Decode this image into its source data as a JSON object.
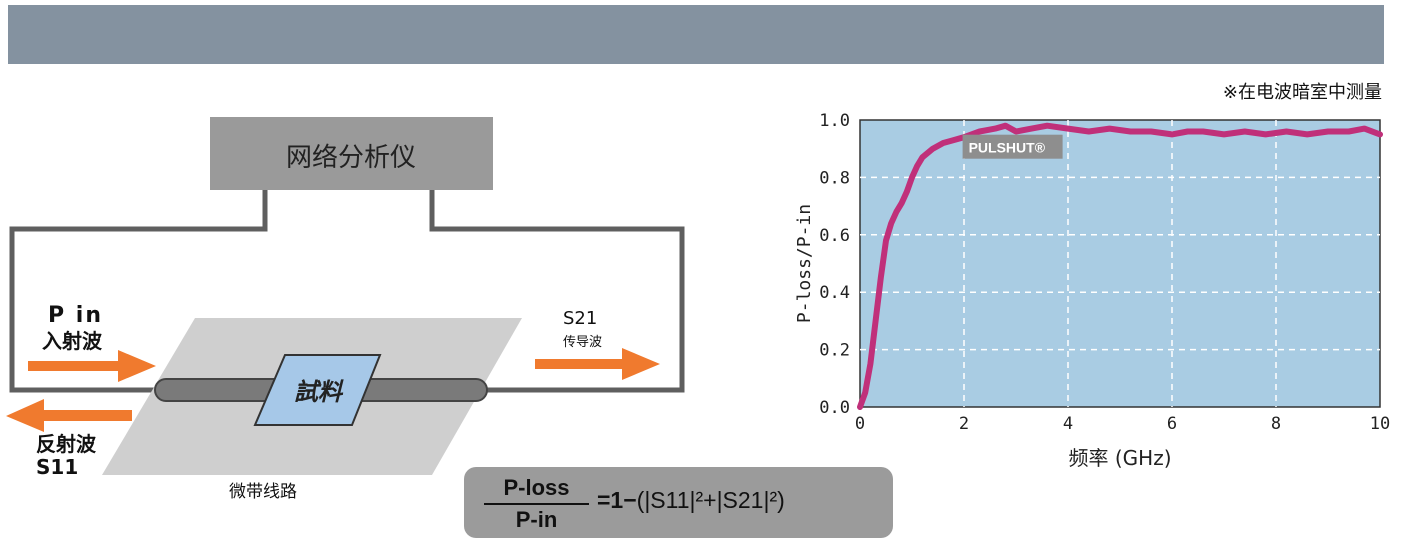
{
  "note": "※在电波暗室中测量",
  "diagram": {
    "analyzer_label": "网络分析仪",
    "pin_label": "P in",
    "incident_label": "入射波",
    "reflect_label": "反射波",
    "s11_label": "S11",
    "s21_label": "S21",
    "transmit_label": "传导波",
    "sample_label": "試料",
    "microstrip_label": "微带线路",
    "colors": {
      "arrow": "#f07a2e",
      "board": "#cfcfcf",
      "sample": "#a6c8e8",
      "box": "#9a9a9a",
      "line": "#5f5f5f"
    }
  },
  "formula": {
    "numerator": "P-loss",
    "denominator": "P-in",
    "eq_one": "=1−",
    "rest": "(|S11|²+|S21|²)"
  },
  "chart_data": {
    "type": "line",
    "xlabel": "频率 (GHz)",
    "ylabel": "P-loss/P-in",
    "xlim": [
      0,
      10
    ],
    "ylim": [
      0,
      1.0
    ],
    "xticks": [
      0,
      2,
      4,
      6,
      8,
      10
    ],
    "yticks": [
      "0.0",
      "0.2",
      "0.4",
      "0.6",
      "0.8",
      "1.0"
    ],
    "grid": true,
    "series": [
      {
        "name": "PULSHUT®",
        "color": "#c0307a",
        "x": [
          0,
          0.1,
          0.2,
          0.3,
          0.4,
          0.5,
          0.6,
          0.7,
          0.8,
          0.9,
          1.0,
          1.1,
          1.2,
          1.4,
          1.6,
          1.8,
          2.0,
          2.3,
          2.6,
          2.8,
          3.0,
          3.3,
          3.6,
          4.0,
          4.4,
          4.8,
          5.2,
          5.6,
          6.0,
          6.3,
          6.6,
          7.0,
          7.4,
          7.8,
          8.2,
          8.6,
          9.0,
          9.4,
          9.7,
          10.0
        ],
        "y": [
          0.0,
          0.05,
          0.15,
          0.3,
          0.45,
          0.58,
          0.64,
          0.68,
          0.71,
          0.75,
          0.8,
          0.84,
          0.87,
          0.9,
          0.92,
          0.93,
          0.94,
          0.96,
          0.97,
          0.98,
          0.96,
          0.97,
          0.98,
          0.97,
          0.96,
          0.97,
          0.96,
          0.96,
          0.95,
          0.96,
          0.96,
          0.95,
          0.96,
          0.95,
          0.96,
          0.95,
          0.96,
          0.96,
          0.97,
          0.95
        ]
      }
    ],
    "annotation": "PULSHUT®",
    "background": "#a9cce3"
  }
}
